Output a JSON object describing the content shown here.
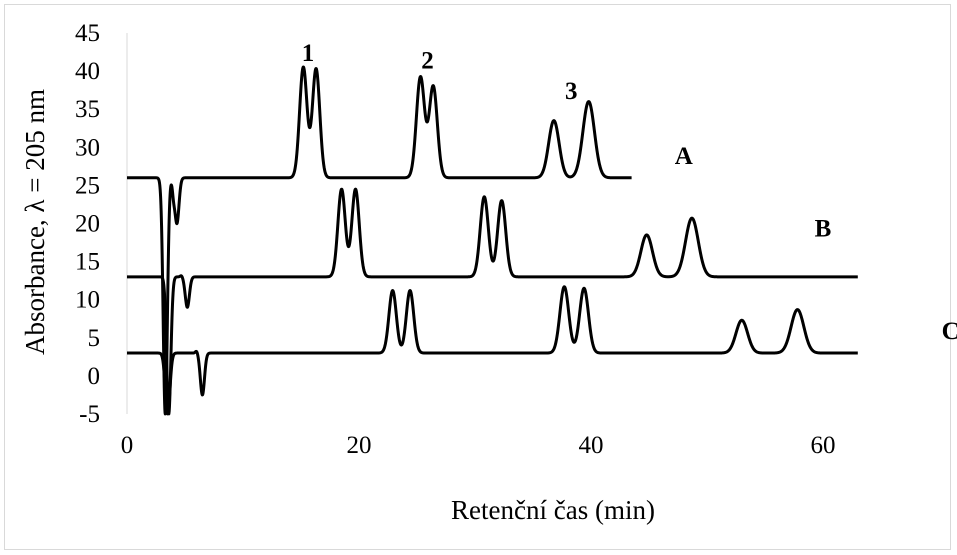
{
  "chart_data": {
    "type": "line",
    "title": "",
    "xlabel": "Retenční čas (min)",
    "ylabel": "Absorbance, λ = 205 nm",
    "xlim": [
      0,
      70
    ],
    "ylim": [
      -5,
      45
    ],
    "x_ticks": [
      0,
      20,
      40,
      60
    ],
    "y_ticks": [
      -5,
      0,
      5,
      10,
      15,
      20,
      25,
      30,
      35,
      40,
      45
    ],
    "grid": false,
    "legend": "none",
    "line_color": "#000000",
    "series": [
      {
        "name": "A",
        "baseline": 26,
        "x_range": [
          0,
          43.5
        ],
        "peaks": [
          {
            "x": 15.2,
            "y": 40.5,
            "width": 0.32
          },
          {
            "x": 16.3,
            "y": 40.3,
            "width": 0.32
          },
          {
            "x": 25.3,
            "y": 39.2,
            "width": 0.35
          },
          {
            "x": 26.4,
            "y": 38.0,
            "width": 0.35
          },
          {
            "x": 36.8,
            "y": 33.5,
            "width": 0.45
          },
          {
            "x": 39.8,
            "y": 36.0,
            "width": 0.5
          }
        ],
        "dips": [
          {
            "x": 3.3,
            "y": -5,
            "width": 0.18
          },
          {
            "x": 4.3,
            "y": 20,
            "width": 0.18
          }
        ],
        "spikes": [
          {
            "x": 4.0,
            "y": 24.5,
            "width": 0.1
          }
        ]
      },
      {
        "name": "B",
        "baseline": 13,
        "x_range": [
          0,
          63
        ],
        "peaks": [
          {
            "x": 18.5,
            "y": 24.5,
            "width": 0.32
          },
          {
            "x": 19.7,
            "y": 24.5,
            "width": 0.32
          },
          {
            "x": 30.8,
            "y": 23.5,
            "width": 0.35
          },
          {
            "x": 32.3,
            "y": 23.0,
            "width": 0.35
          },
          {
            "x": 44.8,
            "y": 18.5,
            "width": 0.5
          },
          {
            "x": 48.7,
            "y": 20.7,
            "width": 0.55
          }
        ],
        "dips": [
          {
            "x": 3.6,
            "y": -5,
            "width": 0.18
          },
          {
            "x": 5.2,
            "y": 9,
            "width": 0.18
          }
        ],
        "spikes": [
          {
            "x": 4.7,
            "y": 13.2,
            "width": 0.1
          }
        ]
      },
      {
        "name": "C",
        "baseline": 3,
        "x_range": [
          0,
          63
        ],
        "peaks": [
          {
            "x": 22.9,
            "y": 11.2,
            "width": 0.32
          },
          {
            "x": 24.4,
            "y": 11.2,
            "width": 0.32
          },
          {
            "x": 37.7,
            "y": 11.7,
            "width": 0.38
          },
          {
            "x": 39.4,
            "y": 11.5,
            "width": 0.38
          },
          {
            "x": 53.0,
            "y": 7.3,
            "width": 0.5
          },
          {
            "x": 57.8,
            "y": 8.7,
            "width": 0.55
          }
        ],
        "dips": [
          {
            "x": 3.5,
            "y": -5,
            "width": 0.2
          },
          {
            "x": 6.5,
            "y": -2.5,
            "width": 0.18
          }
        ],
        "spikes": [
          {
            "x": 6.0,
            "y": 3.3,
            "width": 0.1
          }
        ]
      }
    ],
    "peak_labels": [
      {
        "text": "1",
        "x": 15.6,
        "y": 42.5
      },
      {
        "text": "2",
        "x": 25.9,
        "y": 41.5
      },
      {
        "text": "3",
        "x": 38.3,
        "y": 37.5
      }
    ],
    "trace_labels": [
      {
        "text": "A",
        "x": 48,
        "y": 29
      },
      {
        "text": "B",
        "x": 60,
        "y": 19.5
      },
      {
        "text": "C",
        "x": 71,
        "y": 6
      }
    ]
  }
}
